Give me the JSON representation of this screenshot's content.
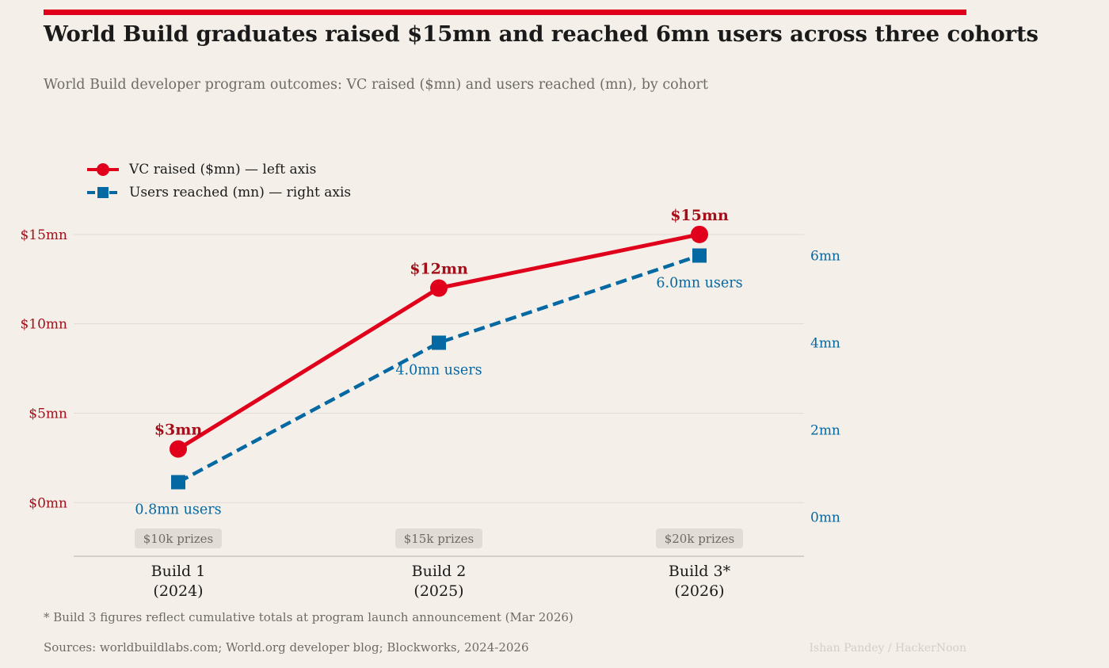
{
  "header": {
    "title": "World Build graduates raised $15mn and reached 6mn users across three cohorts",
    "subtitle": "World Build developer program outcomes: VC raised ($mn) and users reached (mn), by cohort"
  },
  "colors": {
    "accent": "#e0001b",
    "vc": "#e0001b",
    "vc_label": "#a50e19",
    "users": "#0468a3",
    "grid": "#e0dbd3",
    "axis": "#c9c4bd",
    "badge_bg": "#e1ddd6",
    "badge_text": "#6e6a66"
  },
  "footer": {
    "footnote": "* Build 3 figures reflect cumulative totals at program launch announcement (Mar 2026)",
    "sources": "Sources: worldbuildlabs.com; World.org developer blog; Blockworks, 2024-2026",
    "credit": "Ishan Pandey / HackerNoon"
  },
  "chart_data": {
    "type": "line",
    "title": "World Build graduates raised $15mn and reached 6mn users across three cohorts",
    "subtitle": "World Build developer program outcomes: VC raised ($mn) and users reached (mn), by cohort",
    "categories": [
      "Build 1\n(2024)",
      "Build 2\n(2025)",
      "Build 3*\n(2026)"
    ],
    "category_lines": [
      [
        "Build 1",
        "(2024)"
      ],
      [
        "Build 2",
        "(2025)"
      ],
      [
        "Build 3*",
        "(2026)"
      ]
    ],
    "category_badges": [
      "$10k prizes",
      "$15k prizes",
      "$20k prizes"
    ],
    "legend_position": "top-left",
    "grid": true,
    "series": [
      {
        "name": "VC raised ($mn)  —  left axis",
        "axis": "left",
        "marker": "circle",
        "line_style": "solid",
        "values": [
          3,
          12,
          15
        ],
        "data_labels": [
          "$3mn",
          "$12mn",
          "$15mn"
        ]
      },
      {
        "name": "Users reached (mn)  —  right axis",
        "axis": "right",
        "marker": "square",
        "line_style": "dashed",
        "values": [
          0.8,
          4.0,
          6.0
        ],
        "data_labels": [
          "0.8mn users",
          "4.0mn users",
          "6.0mn users"
        ]
      }
    ],
    "left_axis": {
      "label": "VC raised ($mn)",
      "ylim": [
        -3,
        16.5
      ],
      "ticks": [
        0,
        5,
        10,
        15
      ],
      "tick_labels": [
        "$0mn",
        "$5mn",
        "$10mn",
        "$15mn"
      ]
    },
    "right_axis": {
      "label": "Users reached (mn)",
      "ylim": [
        -0.9,
        7.1
      ],
      "ticks": [
        0,
        2,
        4,
        6
      ],
      "tick_labels": [
        "0mn",
        "2mn",
        "4mn",
        "6mn"
      ]
    }
  }
}
